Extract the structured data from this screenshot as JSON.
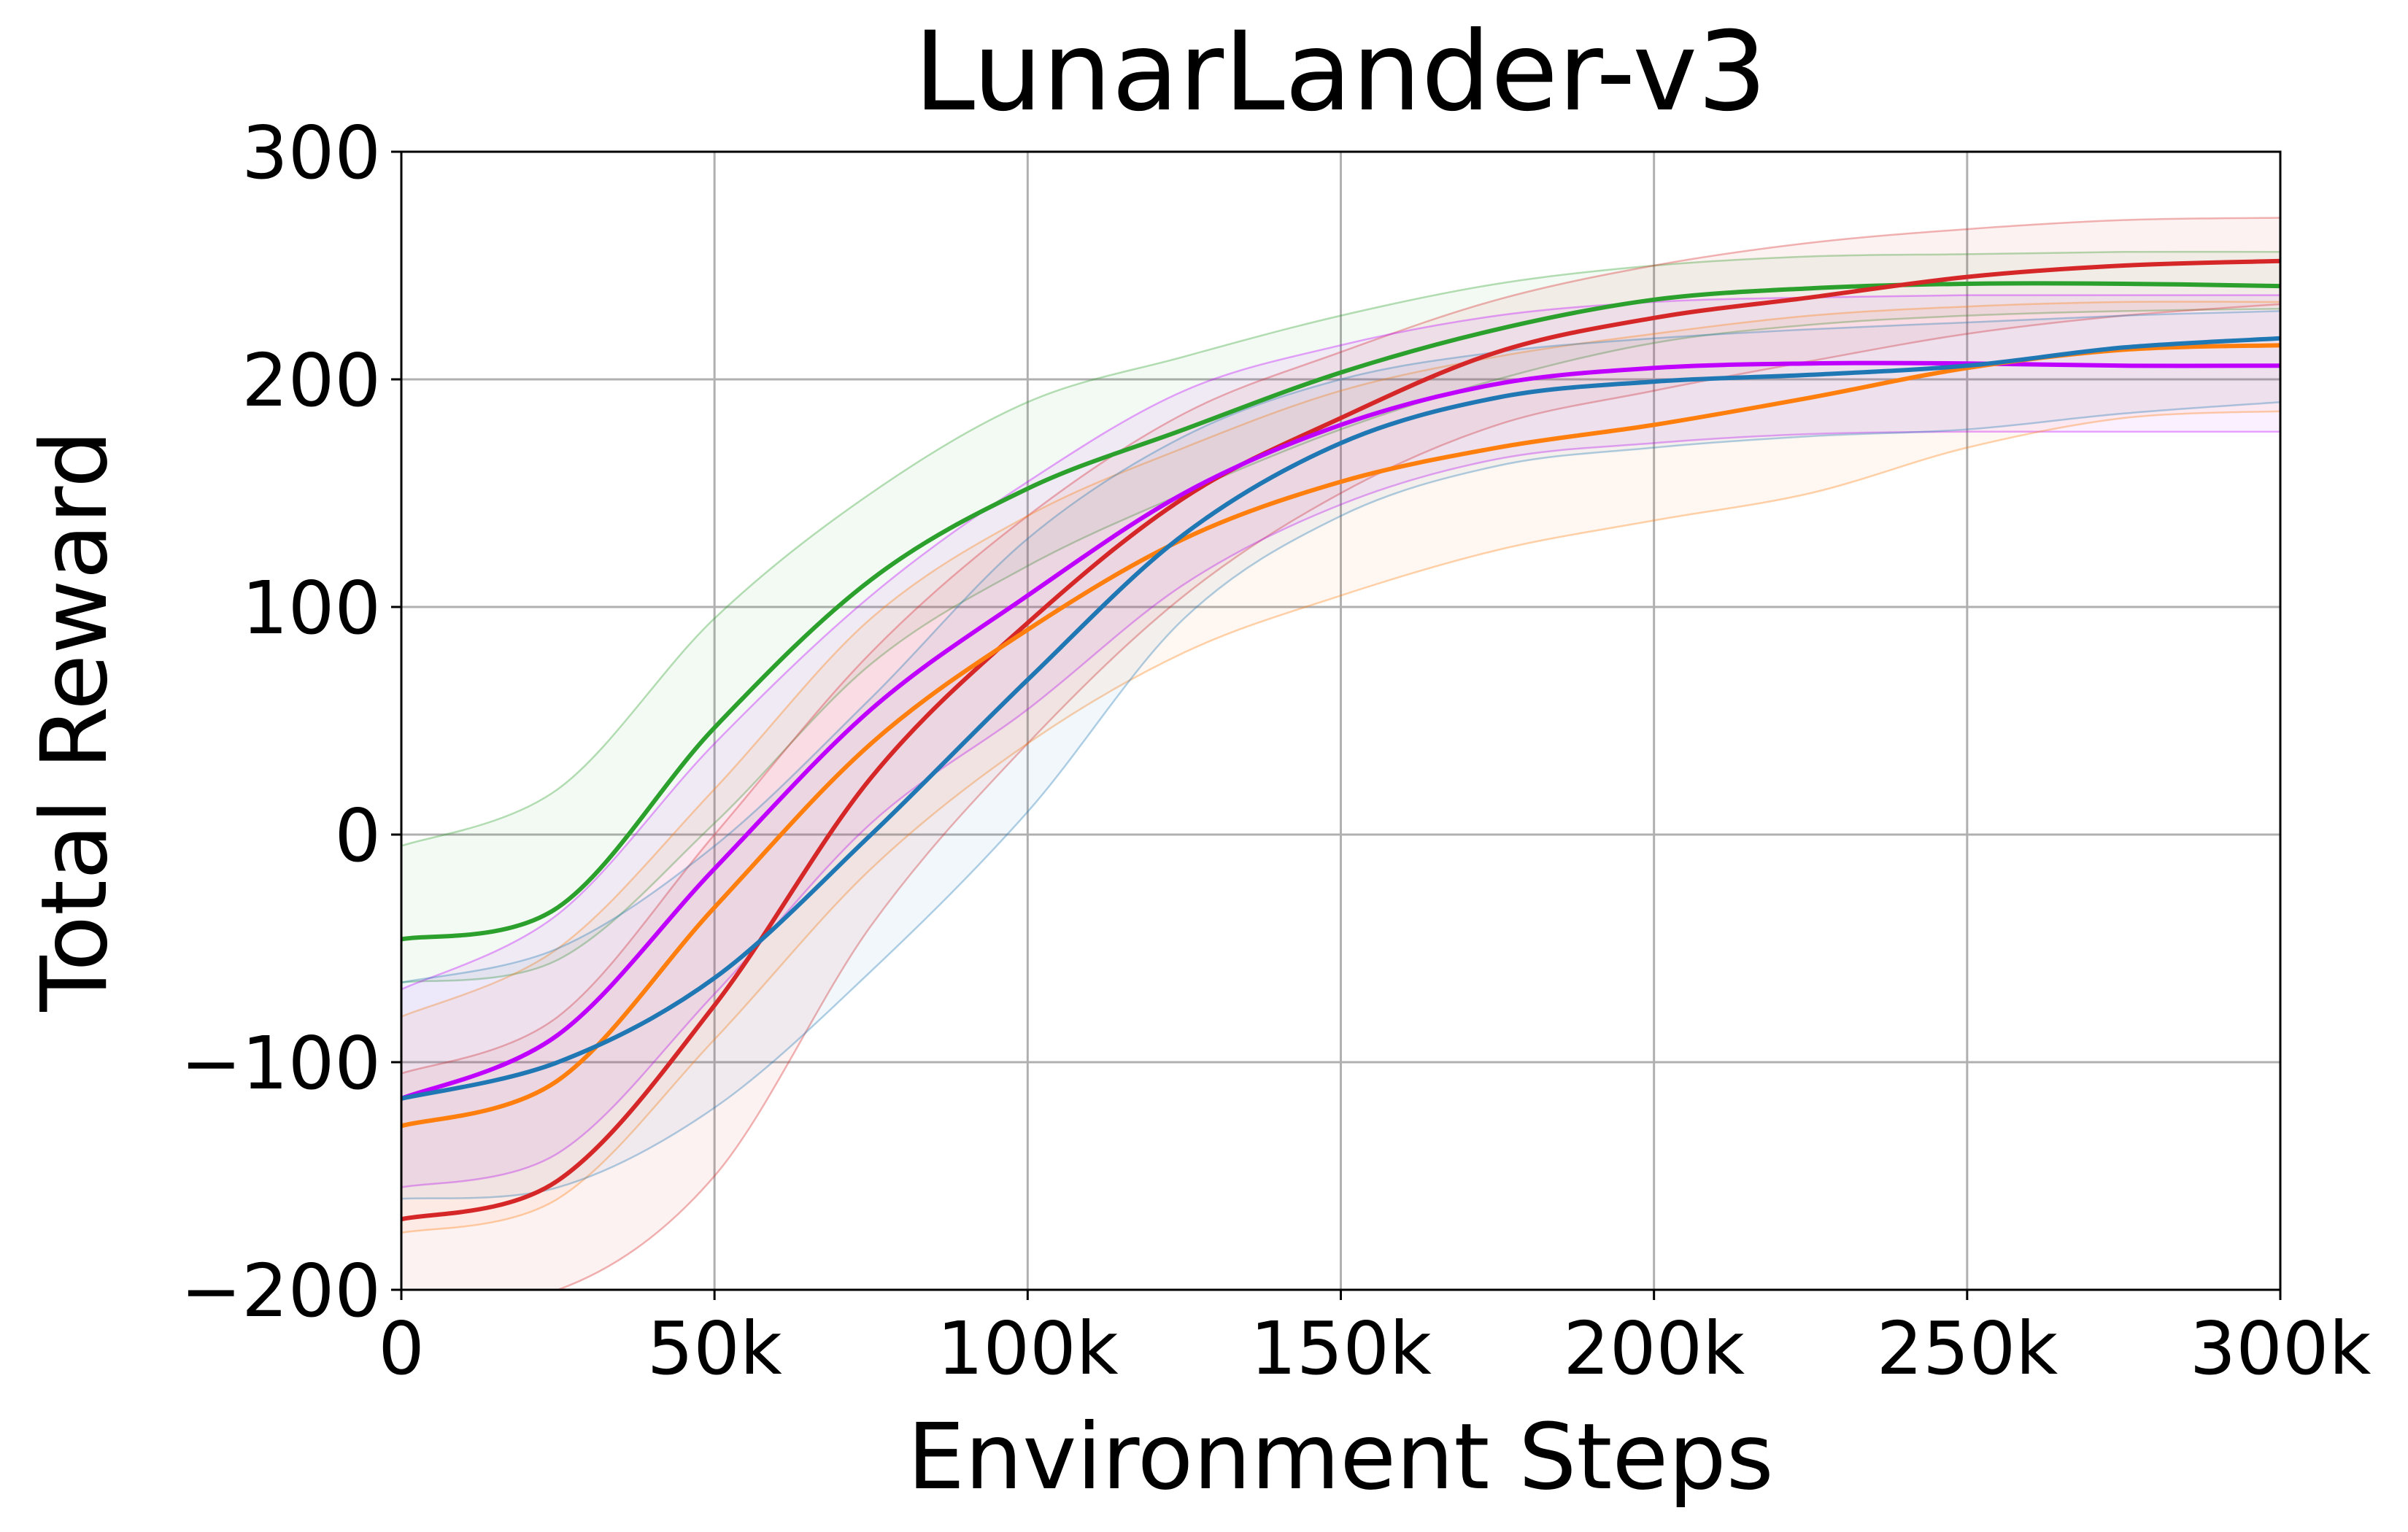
{
  "chart_data": {
    "type": "line",
    "title": "LunarLander-v3",
    "xlabel": "Environment Steps",
    "ylabel": "Total Reward",
    "xlim": [
      0,
      300000
    ],
    "ylim": [
      -200,
      300
    ],
    "xticks": [
      0,
      50000,
      100000,
      150000,
      200000,
      250000,
      300000
    ],
    "xtick_labels": [
      "0",
      "50k",
      "100k",
      "150k",
      "200k",
      "250k",
      "300k"
    ],
    "yticks": [
      -200,
      -100,
      0,
      100,
      200,
      300
    ],
    "ytick_labels": [
      "−200",
      "−100",
      "0",
      "100",
      "200",
      "300"
    ],
    "grid": true,
    "legend": "none",
    "x": [
      0,
      25000,
      50000,
      75000,
      100000,
      125000,
      150000,
      175000,
      200000,
      225000,
      250000,
      275000,
      300000
    ],
    "series": [
      {
        "color": "#2ca02c",
        "values": [
          -46,
          -32,
          47,
          112,
          152,
          178,
          203,
          222,
          235,
          240,
          242,
          242,
          241
        ],
        "lower": [
          -65,
          -55,
          5,
          75,
          118,
          150,
          178,
          200,
          216,
          224,
          228,
          230,
          231
        ],
        "upper": [
          -5,
          20,
          95,
          150,
          190,
          210,
          228,
          242,
          250,
          254,
          255,
          256,
          256
        ]
      },
      {
        "color": "#d62728",
        "values": [
          -169,
          -152,
          -75,
          25,
          93,
          148,
          183,
          212,
          227,
          236,
          245,
          250,
          252
        ],
        "lower": [
          -200,
          -200,
          -150,
          -40,
          40,
          105,
          150,
          180,
          195,
          208,
          220,
          228,
          233
        ],
        "upper": [
          -105,
          -80,
          0,
          80,
          140,
          185,
          212,
          235,
          250,
          260,
          266,
          270,
          271
        ]
      },
      {
        "color": "#bf00ff",
        "values": [
          -116,
          -88,
          -15,
          55,
          105,
          150,
          180,
          198,
          205,
          207,
          207,
          206,
          206
        ],
        "lower": [
          -155,
          -140,
          -70,
          5,
          55,
          110,
          145,
          165,
          172,
          176,
          177,
          177,
          177
        ],
        "upper": [
          -68,
          -35,
          40,
          105,
          155,
          195,
          215,
          228,
          234,
          236,
          237,
          237,
          237
        ]
      },
      {
        "color": "#ff7f0e",
        "values": [
          -128,
          -108,
          -32,
          40,
          90,
          130,
          155,
          170,
          180,
          192,
          205,
          213,
          215
        ],
        "lower": [
          -175,
          -160,
          -90,
          -15,
          40,
          80,
          105,
          125,
          138,
          150,
          170,
          183,
          186
        ],
        "upper": [
          -80,
          -50,
          20,
          95,
          140,
          170,
          195,
          210,
          220,
          228,
          232,
          234,
          234
        ]
      },
      {
        "color": "#1f77b4",
        "values": [
          -116,
          -100,
          -63,
          0,
          68,
          132,
          172,
          192,
          199,
          202,
          206,
          214,
          218
        ],
        "lower": [
          -160,
          -155,
          -120,
          -60,
          10,
          95,
          140,
          162,
          170,
          175,
          178,
          185,
          190
        ],
        "upper": [
          -65,
          -50,
          -5,
          60,
          130,
          175,
          200,
          212,
          218,
          222,
          225,
          228,
          230
        ]
      }
    ]
  }
}
